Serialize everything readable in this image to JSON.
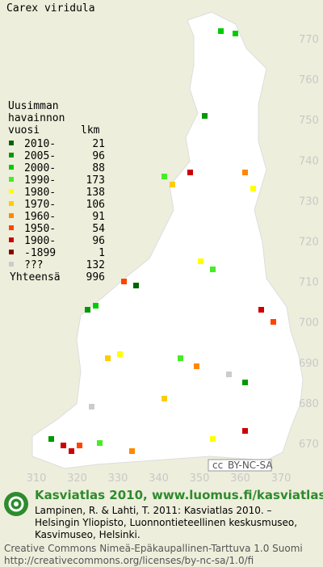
{
  "title": "Carex viridula",
  "legend": {
    "heading": [
      "Uusimman",
      "havainnon",
      "vuosi"
    ],
    "count_heading": "lkm",
    "rows": [
      {
        "label": "2010-",
        "count": 21,
        "color": "#006400"
      },
      {
        "label": "2005-",
        "count": 96,
        "color": "#009900"
      },
      {
        "label": "2000-",
        "count": 88,
        "color": "#00cc00"
      },
      {
        "label": "1990-",
        "count": 173,
        "color": "#44ee22"
      },
      {
        "label": "1980-",
        "count": 138,
        "color": "#ffff00"
      },
      {
        "label": "1970-",
        "count": 106,
        "color": "#ffcc00"
      },
      {
        "label": "1960-",
        "count": 91,
        "color": "#ff8800"
      },
      {
        "label": "1950-",
        "count": 54,
        "color": "#ff4400"
      },
      {
        "label": "1900-",
        "count": 96,
        "color": "#cc0000"
      },
      {
        "label": "-1899",
        "count": 1,
        "color": "#880000"
      },
      {
        "label": "???",
        "count": 132,
        "color": "#cccccc"
      }
    ],
    "total_label": "Yhteensä",
    "total": 996
  },
  "map": {
    "yticks": [
      770,
      760,
      750,
      740,
      730,
      720,
      710,
      700,
      690,
      680,
      670
    ],
    "xticks": [
      310,
      320,
      330,
      340,
      350,
      360,
      370
    ]
  },
  "badge": {
    "cc": "cc",
    "license": "BY-NC-SA"
  },
  "footer": {
    "site": "Kasviatlas 2010, www.luomus.fi/kasviatlas",
    "citation": [
      "Lampinen, R. & Lahti, T. 2011: Kasviatlas 2010. –",
      "Helsingin Yliopisto, Luonnontieteellinen keskusmuseo,",
      "Kasvimuseo, Helsinki."
    ],
    "license": [
      "Creative Commons Nimeä-Epäkaupallinen-Tarttuva 1.0 Suomi",
      "http://creativecommons.org/licenses/by-nc-sa/1.0/fi"
    ]
  }
}
